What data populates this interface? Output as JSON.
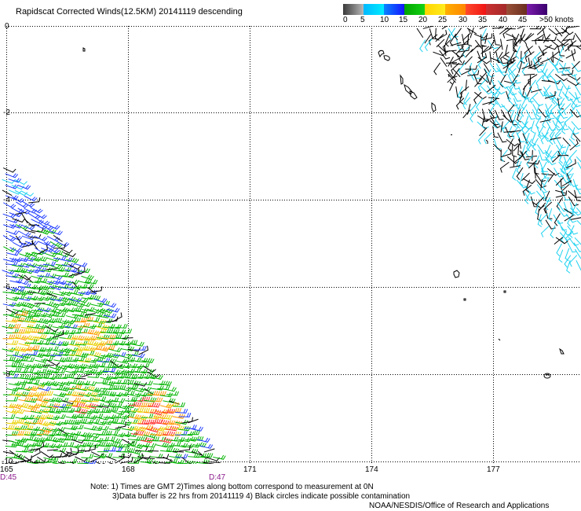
{
  "title": "Rapidscat Corrected Winds(12.5KM) 20141119 descending",
  "legend": {
    "labels": [
      "0",
      "5",
      "10",
      "15",
      "20",
      "25",
      "30",
      "35",
      "40",
      "45",
      ">50 knots"
    ],
    "colors": [
      [
        "#3a3a3a",
        "#b8b8b8"
      ],
      [
        "#00b8ff",
        "#00ecff"
      ],
      [
        "#0a84ff",
        "#1414ff"
      ],
      [
        "#00a400",
        "#14d214"
      ],
      [
        "#ffd400",
        "#ffec1e"
      ],
      [
        "#ffb000",
        "#ff8600"
      ],
      [
        "#ff4a2a",
        "#f01414"
      ],
      [
        "#cc3030",
        "#a42a2a"
      ],
      [
        "#9a5038",
        "#6a2e1e"
      ],
      [
        "#7c1cac",
        "#3a006e"
      ]
    ]
  },
  "axes": {
    "lat_labels": [
      "0",
      "-2",
      "-4",
      "-6",
      "-8",
      "-10"
    ],
    "lon_labels": [
      "165",
      "168",
      "171",
      "174",
      "177"
    ]
  },
  "time_labels": [
    "D:45",
    "D:47"
  ],
  "notes": [
    "Note: 1) Times are GMT 2)Times along bottom correspond to measurement at 0N",
    "3)Data buffer is 22 hrs from 20141119 4) Black circles indicate possible contamination",
    "NOAA/NESDIS/Office of Research and Applications"
  ],
  "barb_colors": {
    "black": "#000000",
    "cyan": "#1ed2f0",
    "blue": "#1f3cff",
    "green": "#00b400",
    "yellow": "#e8d000",
    "orange": "#ff9600",
    "red": "#ff2d2d"
  },
  "style_colors": {
    "grid": "#000000",
    "time_labels": "#8b1a8b",
    "island_outline": "#000000"
  }
}
